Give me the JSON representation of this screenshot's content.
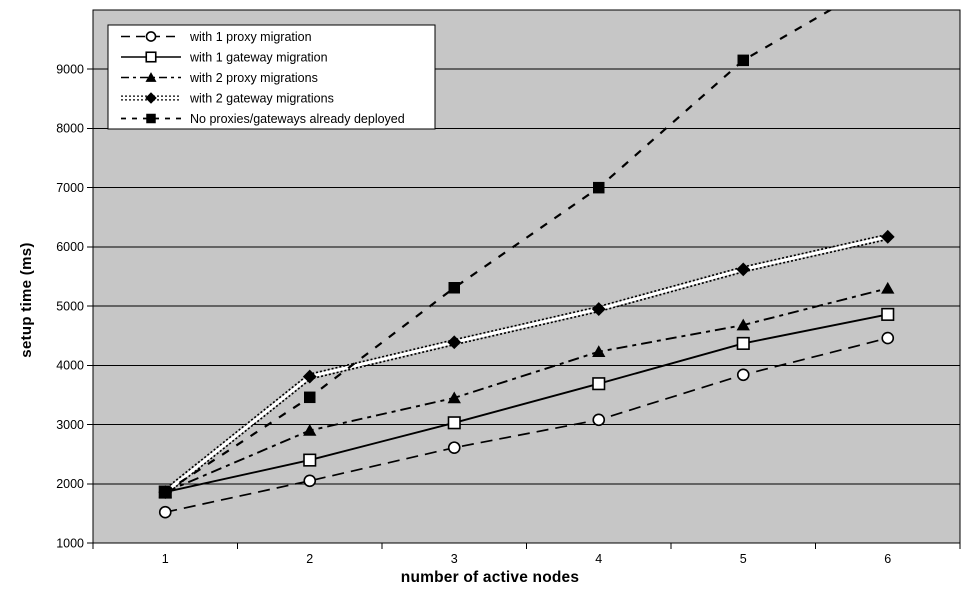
{
  "figure": {
    "xlabel": "number of active nodes",
    "ylabel": "setup time (ms)"
  },
  "colors": {
    "background": "#ffffff",
    "plot_background": "#c6c6c6",
    "line_color": "#000000",
    "gridline_color": "#000000",
    "legend_background": "#ffffff"
  },
  "chart_data": {
    "type": "line",
    "title": "",
    "xlabel": "number of active nodes",
    "ylabel": "setup time (ms)",
    "x_categories": [
      "1",
      "2",
      "3",
      "4",
      "5",
      "6"
    ],
    "yticks": [
      1000,
      2000,
      3000,
      4000,
      5000,
      6000,
      7000,
      8000,
      9000
    ],
    "ylim": [
      1000,
      10000
    ],
    "grid": "horizontal-only",
    "legend_position": "top-left",
    "series": [
      {
        "name": "with 1 proxy migration",
        "marker": "open-circle",
        "line_style": "long-dash",
        "values": [
          1520,
          2050,
          2610,
          3080,
          3840,
          4460
        ]
      },
      {
        "name": "with 1 gateway migration",
        "marker": "open-square",
        "line_style": "solid",
        "values": [
          1860,
          2400,
          3030,
          3690,
          4370,
          4860
        ]
      },
      {
        "name": "with 2 proxy migrations",
        "marker": "filled-triangle",
        "line_style": "dash-dot",
        "values": [
          1860,
          2900,
          3450,
          4230,
          4680,
          5300
        ]
      },
      {
        "name": "with 2 gateway migrations",
        "marker": "filled-diamond",
        "line_style": "thick-dotted-white",
        "values": [
          1860,
          3810,
          4390,
          4950,
          5620,
          6170
        ]
      },
      {
        "name": "No proxies/gateways already deployed",
        "marker": "filled-square",
        "line_style": "dashed",
        "values": [
          1860,
          3460,
          5310,
          7000,
          9150,
          10560
        ],
        "last_point_clipped_above_plot": true
      }
    ]
  }
}
